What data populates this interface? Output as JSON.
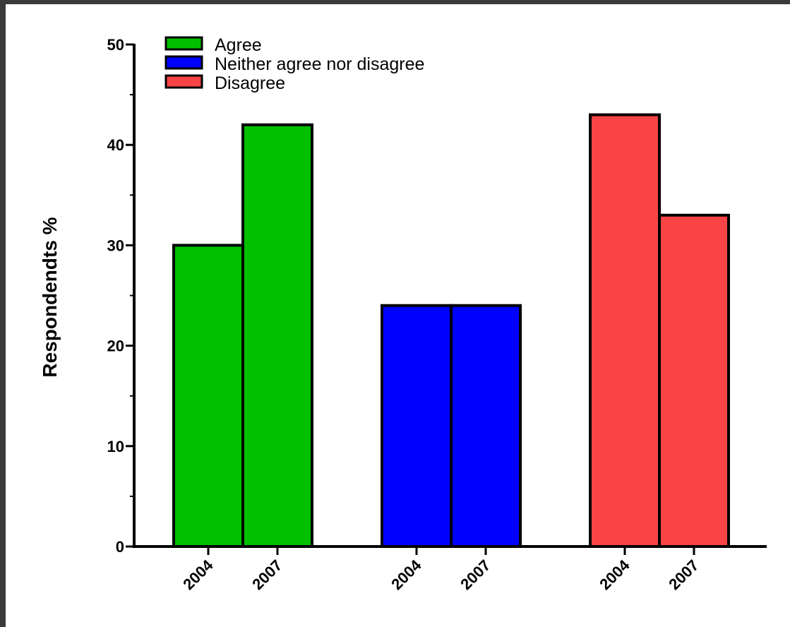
{
  "chart_data": {
    "type": "bar",
    "title": "",
    "xlabel": "",
    "ylabel": "Respondendts %",
    "ylim": [
      0,
      50
    ],
    "y_ticks": [
      "0",
      "10",
      "20",
      "30",
      "40",
      "50"
    ],
    "grid": false,
    "legend_position": "top-left",
    "series": [
      {
        "name": "Agree",
        "color": "#00c000",
        "categories": [
          "2004",
          "2007"
        ],
        "values": [
          30,
          42
        ]
      },
      {
        "name": "Neither agree nor disagree",
        "color": "#0000ff",
        "categories": [
          "2004",
          "2007"
        ],
        "values": [
          24,
          24
        ]
      },
      {
        "name": "Disagree",
        "color": "#f84444",
        "categories": [
          "2004",
          "2007"
        ],
        "values": [
          43,
          33
        ]
      }
    ]
  }
}
